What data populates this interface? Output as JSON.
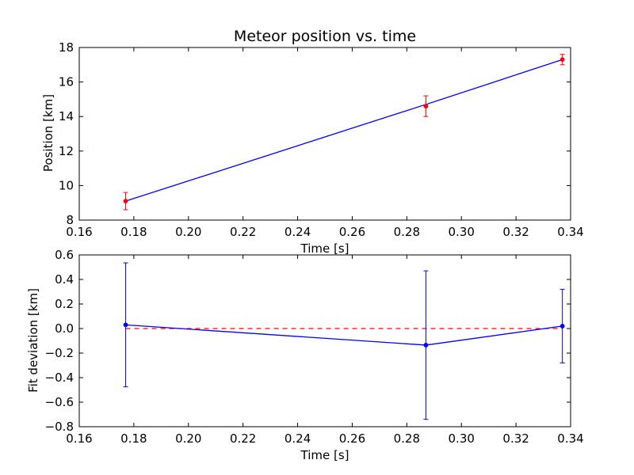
{
  "chart_data": [
    {
      "type": "line",
      "title": "Meteor position vs. time",
      "xlabel": "Time [s]",
      "ylabel": "Position [km]",
      "xlim": [
        0.16,
        0.34
      ],
      "ylim": [
        8,
        18
      ],
      "xticks": [
        "0.16",
        "0.18",
        "0.20",
        "0.22",
        "0.24",
        "0.26",
        "0.28",
        "0.30",
        "0.32",
        "0.34"
      ],
      "yticks": [
        "8",
        "10",
        "12",
        "14",
        "16",
        "18"
      ],
      "grid": false,
      "colors": {
        "fit_line": "#0000ff",
        "points": "#ff0000",
        "error_bars": "#ff0000"
      },
      "series": [
        {
          "style": "solid-line",
          "x": [
            0.177,
            0.287,
            0.337
          ],
          "y": [
            9.1,
            14.7,
            17.3
          ]
        },
        {
          "style": "points-with-error-bars",
          "x": [
            0.177,
            0.287,
            0.337
          ],
          "y": [
            9.1,
            14.6,
            17.3
          ],
          "yerr": [
            0.5,
            0.6,
            0.3
          ]
        }
      ]
    },
    {
      "type": "line",
      "title": "",
      "xlabel": "Time [s]",
      "ylabel": "Fit deviation [km]",
      "xlim": [
        0.16,
        0.34
      ],
      "ylim": [
        -0.8,
        0.6
      ],
      "xticks": [
        "0.16",
        "0.18",
        "0.20",
        "0.22",
        "0.24",
        "0.26",
        "0.28",
        "0.30",
        "0.32",
        "0.34"
      ],
      "yticks": [
        "−0.8",
        "−0.6",
        "−0.4",
        "−0.2",
        "0.0",
        "0.2",
        "0.4",
        "0.6"
      ],
      "grid": false,
      "colors": {
        "deviation": "#0000ff",
        "zero_line": "#ff0000"
      },
      "series": [
        {
          "style": "dashed-reference",
          "x": [
            0.177,
            0.337
          ],
          "y": [
            0.0,
            0.0
          ]
        },
        {
          "style": "line-points-with-error-bars",
          "x": [
            0.177,
            0.287,
            0.337
          ],
          "y": [
            0.03,
            -0.135,
            0.02
          ],
          "yerr": [
            0.505,
            0.605,
            0.3
          ]
        }
      ]
    }
  ]
}
